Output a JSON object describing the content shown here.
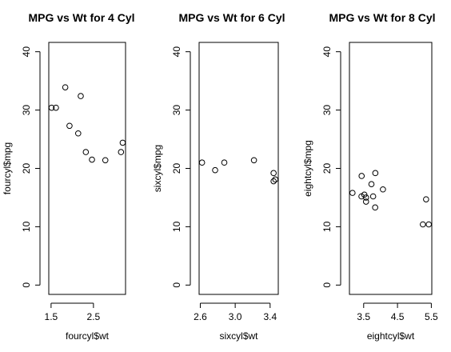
{
  "chart_data": [
    {
      "type": "scatter",
      "title": "MPG vs Wt for 4 Cyl",
      "xlabel": "fourcyl$wt",
      "ylabel": "fourcyl$mpg",
      "xlim": [
        1.513,
        3.19
      ],
      "ylim": [
        0,
        40
      ],
      "xticks": [
        "1.5",
        "2.5"
      ],
      "yticks": [
        "0",
        "10",
        "20",
        "30",
        "40"
      ],
      "points": [
        {
          "x": 2.32,
          "y": 22.8
        },
        {
          "x": 3.19,
          "y": 24.4
        },
        {
          "x": 3.15,
          "y": 22.8
        },
        {
          "x": 2.2,
          "y": 32.4
        },
        {
          "x": 1.615,
          "y": 30.4
        },
        {
          "x": 1.835,
          "y": 33.9
        },
        {
          "x": 2.465,
          "y": 21.5
        },
        {
          "x": 1.935,
          "y": 27.3
        },
        {
          "x": 2.14,
          "y": 26.0
        },
        {
          "x": 1.513,
          "y": 30.4
        },
        {
          "x": 2.78,
          "y": 21.4
        }
      ]
    },
    {
      "type": "scatter",
      "title": "MPG vs Wt for 6 Cyl",
      "xlabel": "sixcyl$wt",
      "ylabel": "sixcyl$mpg",
      "xlim": [
        2.62,
        3.46
      ],
      "ylim": [
        0,
        40
      ],
      "xticks": [
        "2.6",
        "3.0",
        "3.4"
      ],
      "yticks": [
        "0",
        "10",
        "20",
        "30",
        "40"
      ],
      "points": [
        {
          "x": 2.62,
          "y": 21.0
        },
        {
          "x": 2.875,
          "y": 21.0
        },
        {
          "x": 3.215,
          "y": 21.4
        },
        {
          "x": 3.46,
          "y": 18.1
        },
        {
          "x": 3.44,
          "y": 19.2
        },
        {
          "x": 3.44,
          "y": 17.8
        },
        {
          "x": 2.77,
          "y": 19.7
        }
      ]
    },
    {
      "type": "scatter",
      "title": "MPG vs Wt for 8 Cyl",
      "xlabel": "eightcyl$wt",
      "ylabel": "eightcyl$mpg",
      "xlim": [
        3.17,
        5.424
      ],
      "ylim": [
        0,
        40
      ],
      "xticks": [
        "3.5",
        "4.5",
        "5.5"
      ],
      "yticks": [
        "0",
        "10",
        "20",
        "30",
        "40"
      ],
      "points": [
        {
          "x": 3.44,
          "y": 18.7
        },
        {
          "x": 3.57,
          "y": 14.3
        },
        {
          "x": 4.07,
          "y": 16.4
        },
        {
          "x": 3.73,
          "y": 17.3
        },
        {
          "x": 3.78,
          "y": 15.2
        },
        {
          "x": 5.25,
          "y": 10.4
        },
        {
          "x": 5.424,
          "y": 10.4
        },
        {
          "x": 5.345,
          "y": 14.7
        },
        {
          "x": 3.52,
          "y": 15.5
        },
        {
          "x": 3.435,
          "y": 15.2
        },
        {
          "x": 3.84,
          "y": 13.3
        },
        {
          "x": 3.845,
          "y": 19.2
        },
        {
          "x": 3.17,
          "y": 15.8
        },
        {
          "x": 3.57,
          "y": 15.0
        }
      ]
    }
  ]
}
